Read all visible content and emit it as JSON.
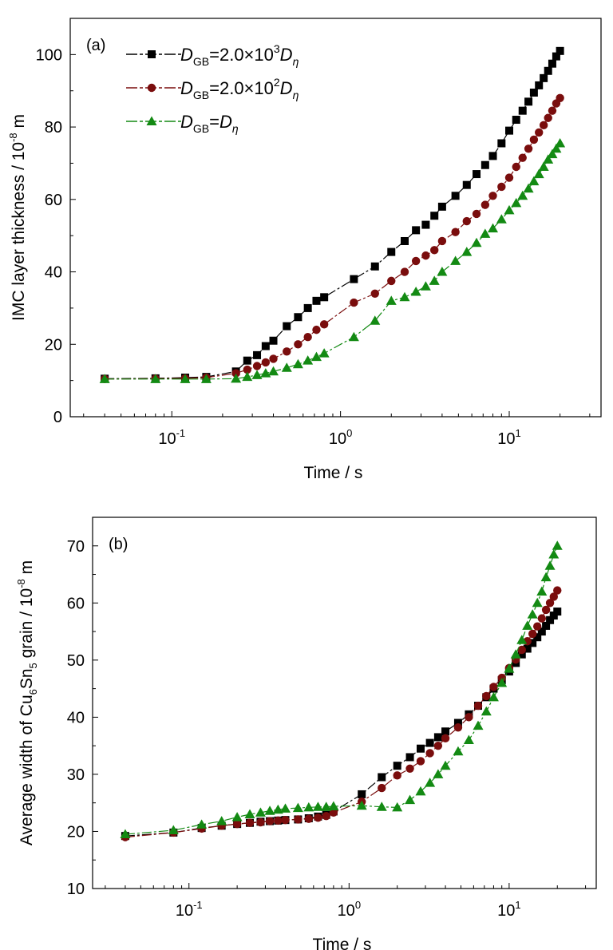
{
  "chart_data": [
    {
      "type": "scatter",
      "panel_label": "(a)",
      "xlabel": "Time / s",
      "ylabel": {
        "main": "IMC layer thickness / 10",
        "sup": "-8",
        "tail": " m"
      },
      "xscale": "log",
      "xlim": [
        0.025,
        35
      ],
      "ylim": [
        0,
        110
      ],
      "x_ticks": [
        {
          "value": 0.1,
          "base": "10",
          "exp": "-1"
        },
        {
          "value": 1,
          "base": "10",
          "exp": "0"
        },
        {
          "value": 10,
          "base": "10",
          "exp": "1"
        }
      ],
      "y_ticks": [
        0,
        20,
        40,
        60,
        80,
        100
      ],
      "grid": false,
      "legend_position": "top-left",
      "series": [
        {
          "legend": [
            {
              "t": "D",
              "i": true
            },
            {
              "t": "GB",
              "sub": true
            },
            {
              "t": "=2.0×10"
            },
            {
              "t": "3",
              "sup": true
            },
            {
              "t": "D",
              "i": true
            },
            {
              "t": "η",
              "sub": true,
              "i": true
            }
          ],
          "color": "#000000",
          "marker": "square",
          "dash": "12,3,3,3",
          "x": [
            0.04,
            0.08,
            0.12,
            0.16,
            0.24,
            0.28,
            0.32,
            0.36,
            0.4,
            0.48,
            0.56,
            0.64,
            0.72,
            0.8,
            1.2,
            1.6,
            2,
            2.4,
            2.8,
            3.2,
            3.6,
            4,
            4.8,
            5.6,
            6.4,
            7.2,
            8,
            9,
            10,
            11,
            12,
            13,
            14,
            15,
            16,
            17,
            18,
            19,
            20
          ],
          "y": [
            10.5,
            10.6,
            10.8,
            11.0,
            12.5,
            15.5,
            17.0,
            19.5,
            21.0,
            25.0,
            27.5,
            30.0,
            32.0,
            33.0,
            38.0,
            41.5,
            45.5,
            48.5,
            51.5,
            53.0,
            55.5,
            58.0,
            61.0,
            64.0,
            67.0,
            69.5,
            72.0,
            75.5,
            79.0,
            82.0,
            84.5,
            87.0,
            89.5,
            91.5,
            93.5,
            95.5,
            97.5,
            99.5,
            101.0
          ]
        },
        {
          "legend": [
            {
              "t": "D",
              "i": true
            },
            {
              "t": "GB",
              "sub": true
            },
            {
              "t": "=2.0×10"
            },
            {
              "t": "2",
              "sup": true
            },
            {
              "t": "D",
              "i": true
            },
            {
              "t": "η",
              "sub": true,
              "i": true
            }
          ],
          "color": "#7a0d0d",
          "marker": "circle",
          "dash": "12,3,3,3",
          "x": [
            0.04,
            0.08,
            0.12,
            0.16,
            0.24,
            0.28,
            0.32,
            0.36,
            0.4,
            0.48,
            0.56,
            0.64,
            0.72,
            0.8,
            1.2,
            1.6,
            2,
            2.4,
            2.8,
            3.2,
            3.6,
            4,
            4.8,
            5.6,
            6.4,
            7.2,
            8,
            9,
            10,
            11,
            12,
            13,
            14,
            15,
            16,
            17,
            18,
            19,
            20
          ],
          "y": [
            10.4,
            10.5,
            10.6,
            10.8,
            12.0,
            13.0,
            14.0,
            15.0,
            16.0,
            18.0,
            20.0,
            22.0,
            24.0,
            25.5,
            31.5,
            34.0,
            37.5,
            40.0,
            43.0,
            44.5,
            46.0,
            48.5,
            51.0,
            54.0,
            56.0,
            58.5,
            61.0,
            63.5,
            66.0,
            69.0,
            71.5,
            74.0,
            76.5,
            78.5,
            80.5,
            82.5,
            84.5,
            86.5,
            88.0
          ]
        },
        {
          "legend": [
            {
              "t": "D",
              "i": true
            },
            {
              "t": "GB",
              "sub": true
            },
            {
              "t": "="
            },
            {
              "t": "D",
              "i": true
            },
            {
              "t": "η",
              "sub": true,
              "i": true
            }
          ],
          "color": "#138a13",
          "marker": "triangle",
          "dash": "12,3,3,3",
          "x": [
            0.04,
            0.08,
            0.12,
            0.16,
            0.24,
            0.28,
            0.32,
            0.36,
            0.4,
            0.48,
            0.56,
            0.64,
            0.72,
            0.8,
            1.2,
            1.6,
            2,
            2.4,
            2.8,
            3.2,
            3.6,
            4,
            4.8,
            5.6,
            6.4,
            7.2,
            8,
            9,
            10,
            11,
            12,
            13,
            14,
            15,
            16,
            17,
            18,
            19,
            20
          ],
          "y": [
            10.4,
            10.4,
            10.4,
            10.4,
            10.5,
            11.0,
            11.5,
            12.0,
            12.5,
            13.5,
            14.5,
            15.5,
            16.5,
            17.5,
            22.0,
            26.5,
            32.0,
            33.0,
            34.5,
            36.0,
            37.5,
            40.0,
            43.0,
            45.5,
            48.0,
            50.5,
            52.0,
            54.5,
            57.0,
            59.0,
            61.0,
            63.0,
            65.0,
            67.0,
            69.0,
            71.0,
            72.5,
            74.0,
            75.5
          ]
        }
      ]
    },
    {
      "type": "scatter",
      "panel_label": "(b)",
      "xlabel": "Time / s",
      "ylabel": {
        "main": "Average width of Cu",
        "sub1": "6",
        "mid": "Sn",
        "sub2": "5",
        "tail": " grain / 10",
        "sup": "-8",
        "tail2": " m"
      },
      "xscale": "log",
      "xlim": [
        0.025,
        35
      ],
      "ylim": [
        10,
        75
      ],
      "x_ticks": [
        {
          "value": 0.1,
          "base": "10",
          "exp": "-1"
        },
        {
          "value": 1,
          "base": "10",
          "exp": "0"
        },
        {
          "value": 10,
          "base": "10",
          "exp": "1"
        }
      ],
      "y_ticks": [
        10,
        20,
        30,
        40,
        50,
        60,
        70
      ],
      "grid": false,
      "series": [
        {
          "color": "#000000",
          "marker": "square",
          "dash": "12,3,3,3",
          "x": [
            0.04,
            0.08,
            0.12,
            0.16,
            0.2,
            0.24,
            0.28,
            0.32,
            0.36,
            0.4,
            0.48,
            0.56,
            0.64,
            0.72,
            0.8,
            1.2,
            1.6,
            2,
            2.4,
            2.8,
            3.2,
            3.6,
            4,
            4.8,
            5.6,
            6.4,
            7.2,
            8,
            9,
            10,
            11,
            12,
            13,
            14,
            15,
            16,
            17,
            18,
            19,
            20
          ],
          "y": [
            19.2,
            19.8,
            20.6,
            21.0,
            21.3,
            21.5,
            21.7,
            21.8,
            21.9,
            22.0,
            22.1,
            22.3,
            22.6,
            22.9,
            23.5,
            26.5,
            29.5,
            31.5,
            33.0,
            34.5,
            35.5,
            36.5,
            37.5,
            39.0,
            40.5,
            42.0,
            43.5,
            45.0,
            46.5,
            48.0,
            49.5,
            51.0,
            52.0,
            53.0,
            54.0,
            55.0,
            56.0,
            57.0,
            57.8,
            58.5
          ]
        },
        {
          "color": "#7a0d0d",
          "marker": "circle",
          "dash": "12,3,3,3",
          "x": [
            0.04,
            0.08,
            0.12,
            0.16,
            0.2,
            0.24,
            0.28,
            0.32,
            0.36,
            0.4,
            0.48,
            0.56,
            0.64,
            0.72,
            0.8,
            1.2,
            1.6,
            2,
            2.4,
            2.8,
            3.2,
            3.6,
            4,
            4.8,
            5.6,
            6.4,
            7.2,
            8,
            9,
            10,
            11,
            12,
            13,
            14,
            15,
            16,
            17,
            18,
            19,
            20
          ],
          "y": [
            19.0,
            19.8,
            20.5,
            21.0,
            21.3,
            21.5,
            21.6,
            21.8,
            21.9,
            22.0,
            22.1,
            22.2,
            22.4,
            22.7,
            23.3,
            25.2,
            27.6,
            29.8,
            31.0,
            32.3,
            33.7,
            35.0,
            36.3,
            38.2,
            40.0,
            42.0,
            43.7,
            45.3,
            46.9,
            48.6,
            50.1,
            51.8,
            53.3,
            54.6,
            55.9,
            57.3,
            58.8,
            60.0,
            61.1,
            62.2
          ]
        },
        {
          "color": "#138a13",
          "marker": "triangle",
          "dash": "12,3,3,3",
          "x": [
            0.04,
            0.08,
            0.12,
            0.16,
            0.2,
            0.24,
            0.28,
            0.32,
            0.36,
            0.4,
            0.48,
            0.56,
            0.64,
            0.72,
            0.8,
            1.2,
            1.6,
            2,
            2.4,
            2.8,
            3.2,
            3.6,
            4,
            4.8,
            5.6,
            6.4,
            7.2,
            8,
            9,
            10,
            11,
            12,
            13,
            14,
            15,
            16,
            17,
            18,
            19,
            20
          ],
          "y": [
            19.5,
            20.2,
            21.2,
            21.8,
            22.5,
            23.0,
            23.3,
            23.6,
            23.8,
            24.0,
            24.1,
            24.2,
            24.3,
            24.3,
            24.4,
            24.5,
            24.3,
            24.2,
            25.5,
            27.0,
            28.5,
            30.0,
            31.5,
            34.0,
            36.0,
            38.5,
            41.0,
            43.5,
            46.0,
            48.5,
            51.0,
            53.5,
            56.0,
            58.0,
            60.0,
            62.0,
            64.5,
            66.5,
            68.5,
            70.0
          ]
        }
      ]
    }
  ]
}
